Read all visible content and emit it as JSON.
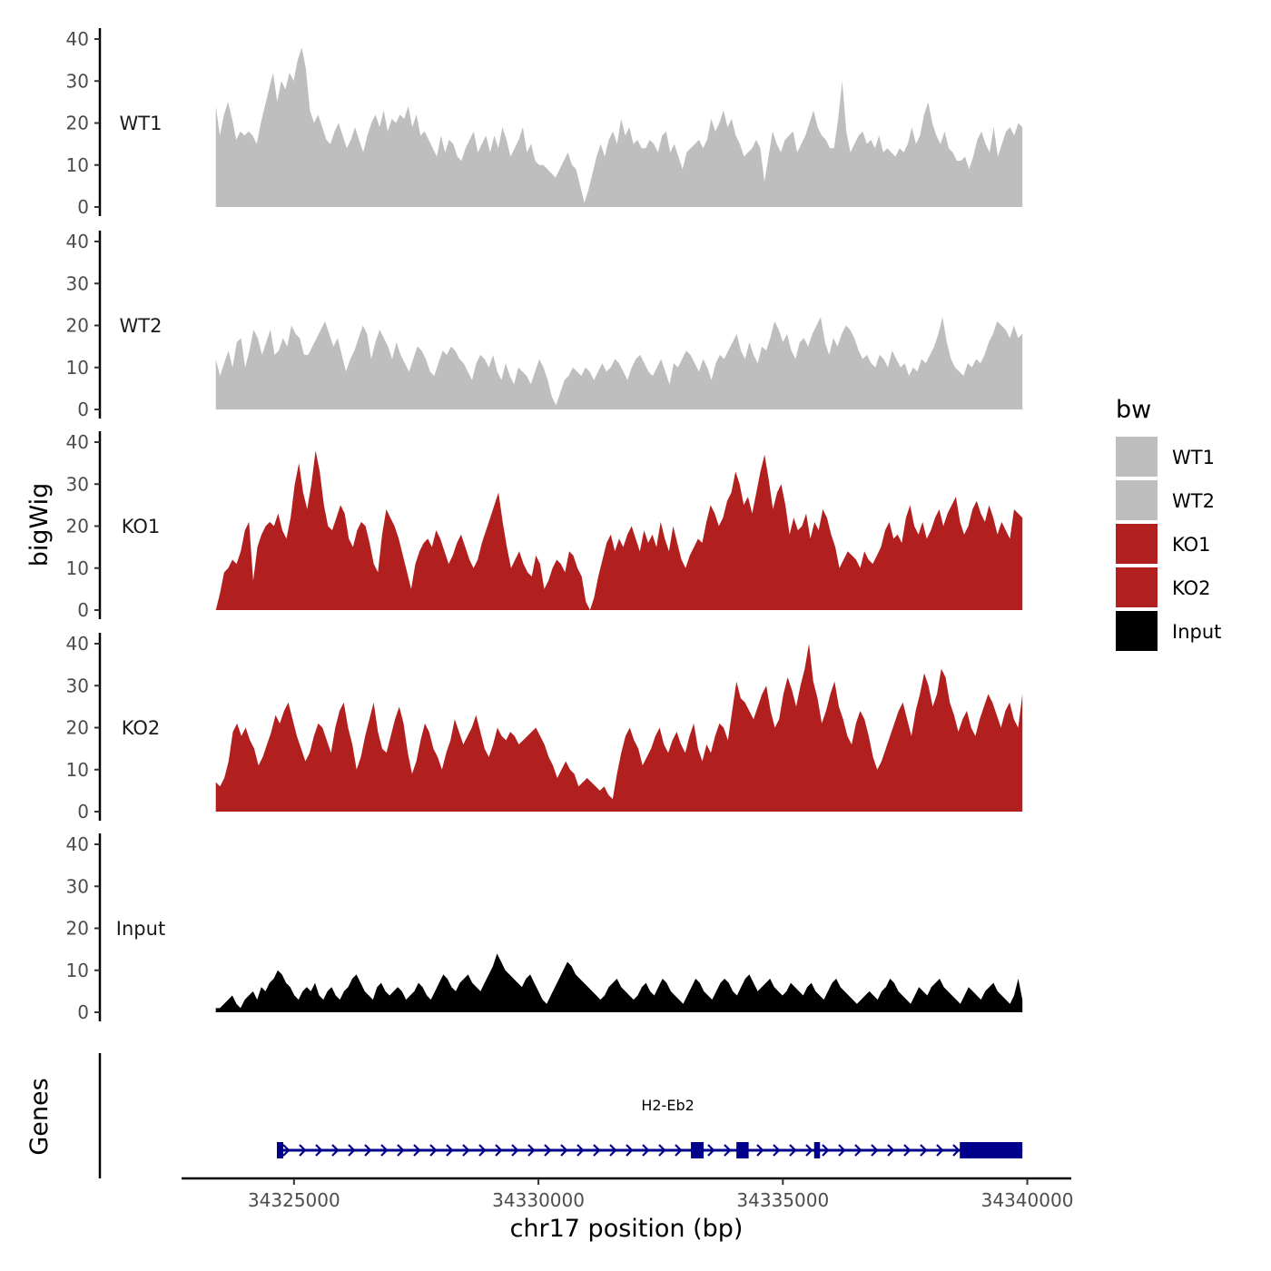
{
  "chart_data": {
    "type": "area",
    "chromosome": "chr17",
    "xlabel": "chr17 position (bp)",
    "ylabel": "bigWig",
    "genes_label": "Genes",
    "xlim": [
      34322700,
      34340900
    ],
    "x_ticks": [
      34325000,
      34330000,
      34335000,
      34340000
    ],
    "x_tick_labels": [
      "34325000",
      "34330000",
      "34335000",
      "34340000"
    ],
    "ylim": [
      0,
      40
    ],
    "y_ticks": [
      0,
      10,
      20,
      30,
      40
    ],
    "y_tick_labels": [
      "0",
      "10",
      "20",
      "30",
      "40"
    ],
    "x_start": 34323400,
    "x_end": 34339900,
    "legend": {
      "title": "bw",
      "entries": [
        {
          "label": "WT1",
          "color": "#bebebe"
        },
        {
          "label": "WT2",
          "color": "#bebebe"
        },
        {
          "label": "KO1",
          "color": "#b21f1f"
        },
        {
          "label": "KO2",
          "color": "#b21f1f"
        },
        {
          "label": "Input",
          "color": "#000000"
        }
      ]
    },
    "series": [
      {
        "name": "WT1",
        "color": "#bebebe",
        "values": [
          24,
          17,
          22,
          25,
          21,
          16,
          18,
          17,
          18,
          17,
          15,
          20,
          24,
          28,
          32,
          25,
          30,
          28,
          32,
          30,
          35,
          38,
          33,
          23,
          20,
          22,
          19,
          16,
          15,
          18,
          20,
          17,
          14,
          16,
          19,
          16,
          13,
          17,
          20,
          22,
          19,
          23,
          18,
          21,
          20,
          22,
          21,
          24,
          19,
          22,
          17,
          18,
          16,
          14,
          12,
          17,
          13,
          16,
          15,
          12,
          11,
          14,
          16,
          18,
          13,
          15,
          17,
          13,
          17,
          14,
          19,
          16,
          12,
          14,
          16,
          19,
          13,
          15,
          11,
          10,
          10,
          9,
          8,
          7,
          9,
          11,
          13,
          10,
          9,
          5,
          1,
          4,
          8,
          12,
          15,
          12,
          16,
          18,
          15,
          21,
          17,
          19,
          15,
          16,
          14,
          14,
          16,
          15,
          13,
          17,
          18,
          13,
          15,
          12,
          9,
          13,
          14,
          15,
          16,
          14,
          16,
          21,
          18,
          20,
          23,
          19,
          21,
          17,
          15,
          12,
          13,
          14,
          16,
          14,
          6,
          12,
          18,
          15,
          13,
          16,
          17,
          18,
          13,
          15,
          17,
          20,
          23,
          19,
          17,
          16,
          14,
          14,
          21,
          30,
          18,
          13,
          15,
          17,
          18,
          15,
          16,
          14,
          17,
          13,
          14,
          13,
          12,
          14,
          13,
          15,
          19,
          15,
          17,
          22,
          25,
          20,
          17,
          15,
          18,
          14,
          13,
          11,
          11,
          12,
          9,
          12,
          16,
          18,
          15,
          13,
          19,
          12,
          15,
          18,
          19,
          17,
          20,
          19
        ]
      },
      {
        "name": "WT2",
        "color": "#bebebe",
        "values": [
          12,
          8,
          11,
          14,
          10,
          16,
          17,
          10,
          14,
          19,
          17,
          13,
          16,
          19,
          13,
          14,
          17,
          15,
          20,
          18,
          17,
          13,
          13,
          15,
          17,
          19,
          21,
          18,
          15,
          17,
          13,
          9,
          12,
          14,
          17,
          20,
          18,
          12,
          16,
          19,
          17,
          15,
          12,
          16,
          13,
          11,
          9,
          12,
          15,
          14,
          12,
          9,
          8,
          11,
          14,
          13,
          15,
          14,
          12,
          11,
          9,
          7,
          11,
          13,
          12,
          10,
          13,
          9,
          7,
          11,
          8,
          6,
          10,
          9,
          8,
          6,
          9,
          12,
          10,
          7,
          3,
          1,
          4,
          7,
          8,
          10,
          9,
          8,
          10,
          9,
          7,
          9,
          11,
          9,
          10,
          12,
          11,
          9,
          7,
          10,
          12,
          13,
          11,
          9,
          8,
          10,
          12,
          9,
          6,
          11,
          10,
          12,
          14,
          13,
          11,
          9,
          12,
          10,
          7,
          11,
          13,
          12,
          14,
          16,
          18,
          14,
          12,
          16,
          13,
          11,
          15,
          14,
          17,
          21,
          19,
          16,
          18,
          14,
          12,
          16,
          17,
          15,
          18,
          20,
          22,
          16,
          13,
          17,
          15,
          18,
          20,
          19,
          17,
          14,
          12,
          13,
          11,
          10,
          13,
          12,
          10,
          14,
          12,
          10,
          11,
          8,
          10,
          9,
          12,
          11,
          13,
          15,
          18,
          22,
          16,
          12,
          10,
          9,
          8,
          11,
          10,
          12,
          11,
          13,
          16,
          18,
          21,
          20,
          19,
          17,
          20,
          17,
          18
        ]
      },
      {
        "name": "KO1",
        "color": "#b21f1f",
        "values": [
          0,
          4,
          9,
          10,
          12,
          11,
          14,
          19,
          21,
          7,
          15,
          18,
          20,
          21,
          20,
          23,
          19,
          17,
          22,
          30,
          35,
          28,
          24,
          30,
          38,
          33,
          25,
          20,
          19,
          22,
          25,
          23,
          17,
          15,
          19,
          21,
          20,
          16,
          11,
          9,
          18,
          24,
          22,
          20,
          17,
          13,
          9,
          5,
          11,
          14,
          16,
          17,
          15,
          19,
          17,
          14,
          11,
          13,
          16,
          18,
          15,
          12,
          10,
          12,
          16,
          19,
          22,
          25,
          28,
          21,
          15,
          10,
          12,
          14,
          11,
          9,
          8,
          13,
          11,
          5,
          7,
          10,
          12,
          11,
          9,
          14,
          13,
          10,
          8,
          2,
          0,
          3,
          8,
          12,
          16,
          18,
          14,
          17,
          15,
          18,
          20,
          17,
          14,
          19,
          16,
          18,
          15,
          21,
          17,
          14,
          20,
          16,
          12,
          10,
          13,
          15,
          17,
          16,
          21,
          25,
          23,
          20,
          22,
          26,
          28,
          33,
          30,
          25,
          27,
          23,
          28,
          33,
          37,
          31,
          24,
          28,
          30,
          25,
          18,
          22,
          19,
          20,
          23,
          17,
          21,
          19,
          24,
          22,
          18,
          15,
          10,
          12,
          14,
          13,
          12,
          10,
          14,
          12,
          11,
          13,
          15,
          19,
          21,
          17,
          18,
          16,
          22,
          25,
          20,
          18,
          21,
          17,
          19,
          22,
          24,
          20,
          23,
          25,
          27,
          21,
          18,
          20,
          24,
          26,
          23,
          21,
          25,
          22,
          18,
          21,
          19,
          17,
          24,
          23,
          22
        ]
      },
      {
        "name": "KO2",
        "color": "#b21f1f",
        "values": [
          7,
          6,
          8,
          12,
          19,
          21,
          18,
          20,
          17,
          15,
          11,
          13,
          16,
          19,
          23,
          21,
          24,
          26,
          22,
          18,
          15,
          12,
          14,
          18,
          21,
          20,
          17,
          14,
          20,
          24,
          26,
          20,
          16,
          10,
          13,
          18,
          22,
          26,
          19,
          15,
          14,
          18,
          22,
          25,
          21,
          14,
          9,
          12,
          17,
          21,
          19,
          15,
          13,
          10,
          14,
          17,
          22,
          19,
          16,
          18,
          20,
          23,
          19,
          15,
          13,
          16,
          20,
          18,
          17,
          19,
          18,
          16,
          17,
          18,
          19,
          20,
          18,
          16,
          13,
          11,
          8,
          10,
          12,
          10,
          9,
          6,
          7,
          8,
          7,
          6,
          5,
          6,
          4,
          3,
          9,
          14,
          18,
          20,
          17,
          15,
          11,
          13,
          15,
          18,
          20,
          16,
          14,
          17,
          19,
          16,
          14,
          18,
          21,
          15,
          12,
          16,
          14,
          18,
          21,
          20,
          17,
          24,
          31,
          27,
          26,
          24,
          22,
          25,
          28,
          30,
          24,
          20,
          22,
          28,
          32,
          29,
          25,
          30,
          34,
          40,
          31,
          27,
          21,
          24,
          28,
          31,
          25,
          22,
          18,
          16,
          21,
          24,
          22,
          18,
          13,
          10,
          12,
          15,
          18,
          21,
          24,
          26,
          22,
          18,
          24,
          28,
          33,
          30,
          25,
          28,
          34,
          32,
          26,
          23,
          19,
          22,
          24,
          20,
          18,
          22,
          25,
          28,
          26,
          23,
          20,
          24,
          26,
          22,
          20,
          28
        ]
      },
      {
        "name": "Input",
        "color": "#000000",
        "values": [
          1,
          1,
          2,
          3,
          4,
          2,
          1,
          3,
          4,
          5,
          3,
          6,
          5,
          7,
          8,
          10,
          9,
          7,
          6,
          4,
          3,
          5,
          6,
          5,
          7,
          4,
          3,
          5,
          6,
          4,
          3,
          5,
          6,
          8,
          9,
          7,
          5,
          4,
          3,
          6,
          7,
          5,
          4,
          5,
          6,
          5,
          3,
          4,
          5,
          7,
          6,
          4,
          3,
          5,
          7,
          9,
          8,
          6,
          5,
          7,
          8,
          9,
          7,
          6,
          5,
          7,
          9,
          11,
          14,
          12,
          10,
          9,
          8,
          7,
          6,
          8,
          9,
          7,
          5,
          3,
          2,
          4,
          6,
          8,
          10,
          12,
          11,
          9,
          8,
          7,
          6,
          5,
          4,
          3,
          4,
          6,
          7,
          8,
          6,
          5,
          4,
          3,
          4,
          6,
          7,
          5,
          4,
          6,
          8,
          7,
          5,
          4,
          3,
          2,
          4,
          6,
          8,
          7,
          5,
          4,
          3,
          5,
          7,
          8,
          7,
          5,
          4,
          6,
          8,
          9,
          7,
          5,
          6,
          7,
          8,
          6,
          5,
          4,
          5,
          7,
          6,
          5,
          4,
          6,
          7,
          5,
          4,
          3,
          5,
          7,
          8,
          6,
          5,
          4,
          3,
          2,
          3,
          4,
          5,
          4,
          3,
          5,
          6,
          8,
          7,
          5,
          4,
          3,
          2,
          4,
          6,
          5,
          4,
          6,
          7,
          8,
          6,
          5,
          4,
          3,
          2,
          4,
          6,
          5,
          4,
          3,
          5,
          6,
          7,
          5,
          4,
          3,
          2,
          4,
          8,
          3
        ]
      }
    ],
    "gene": {
      "name": "H2-Eb2",
      "start": 34324650,
      "end": 34339900,
      "strand": "+",
      "color": "#00008b",
      "exons": [
        [
          34324650,
          34324780
        ],
        [
          34333120,
          34333380
        ],
        [
          34334050,
          34334300
        ],
        [
          34335640,
          34335760
        ],
        [
          34338620,
          34339900
        ]
      ]
    }
  }
}
